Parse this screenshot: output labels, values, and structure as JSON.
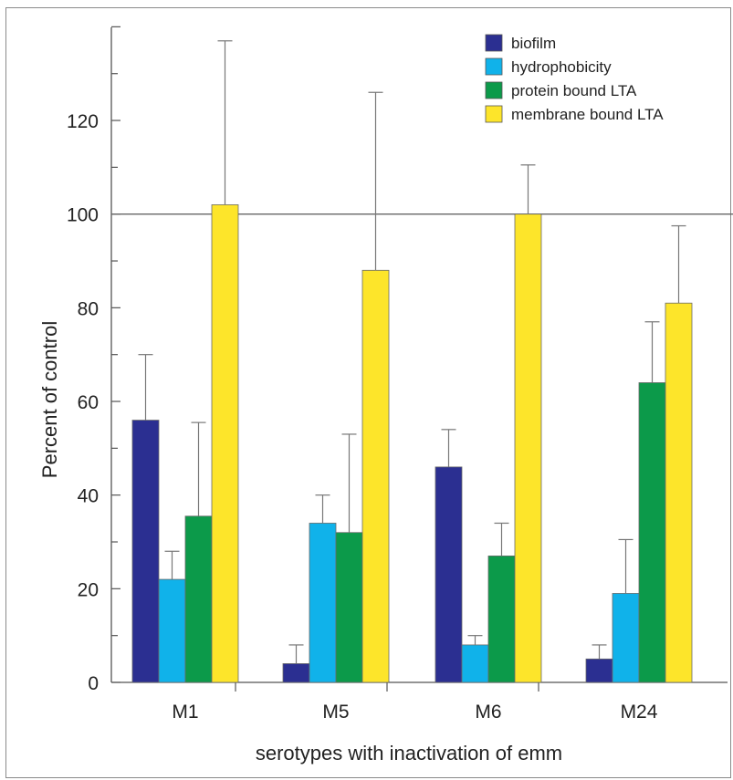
{
  "chart_data": {
    "type": "bar",
    "title": "",
    "xlabel": "serotypes with inactivation of emm",
    "ylabel": "Percent of control",
    "categories": [
      "M1",
      "M5",
      "M6",
      "M24"
    ],
    "ylim": [
      0,
      140
    ],
    "yticks": [
      0,
      20,
      40,
      60,
      80,
      100,
      120
    ],
    "reference_line": 100,
    "legend_position": "top-right",
    "series": [
      {
        "name": "biofilm",
        "color": "#2b2f91",
        "values": [
          56,
          4,
          46,
          5
        ],
        "errors": [
          14,
          4,
          8,
          3
        ]
      },
      {
        "name": "hydrophobicity",
        "color": "#10b2ea",
        "values": [
          22,
          34,
          8,
          19
        ],
        "errors": [
          6,
          6,
          2,
          11.5
        ]
      },
      {
        "name": "protein bound LTA",
        "color": "#0c9a4a",
        "values": [
          35.5,
          32,
          27,
          64
        ],
        "errors": [
          20,
          21,
          7,
          13
        ]
      },
      {
        "name": "membrane bound LTA",
        "color": "#fde52a",
        "values": [
          102,
          88,
          100,
          81
        ],
        "errors": [
          35,
          38,
          10.5,
          16.5
        ]
      }
    ]
  }
}
